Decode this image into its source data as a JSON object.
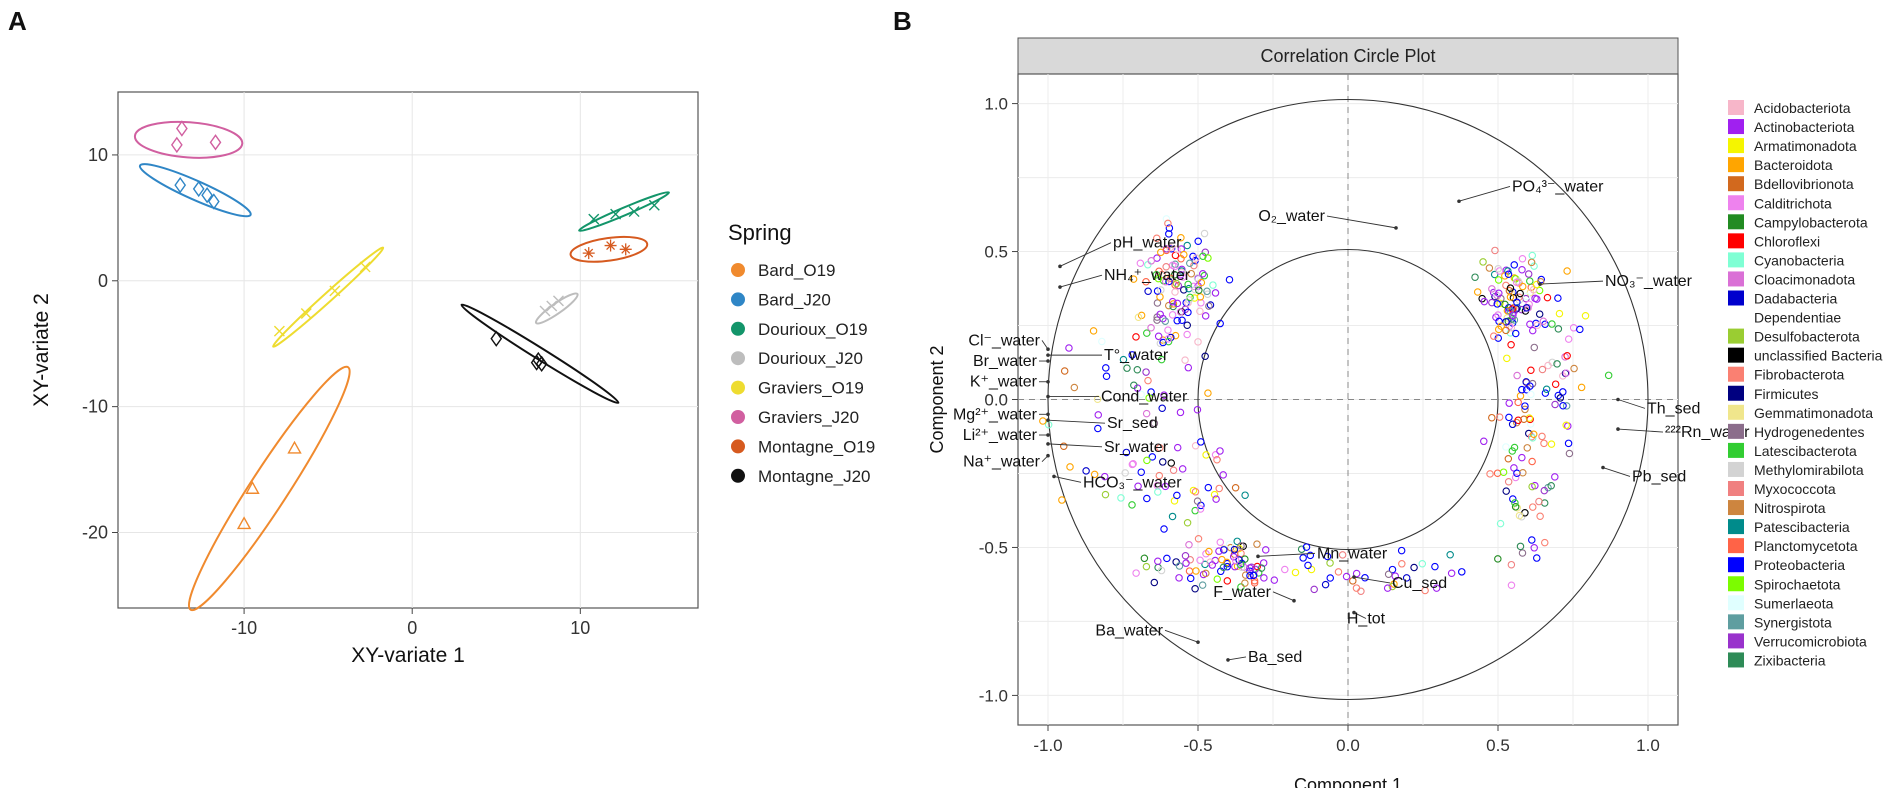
{
  "figure_labels": {
    "a": "A",
    "b": "B"
  },
  "chart_data": [
    {
      "type": "scatter",
      "panel": "A",
      "xlabel": "XY-variate 1",
      "ylabel": "XY-variate 2",
      "xlim": [
        -17.5,
        17
      ],
      "ylim": [
        -26,
        15
      ],
      "xticks": [
        -10,
        0,
        10
      ],
      "yticks": [
        -20,
        -10,
        0,
        10
      ],
      "grid": true,
      "legend_title": "Spring",
      "legend_position": "right",
      "series": [
        {
          "name": "Bard_O19",
          "color": "#F08A2E",
          "marker": "triangle",
          "points": [
            [
              -7.0,
              -13.3
            ],
            [
              -9.5,
              -16.5
            ],
            [
              -10.0,
              -19.3
            ]
          ],
          "ellipse": {
            "cx": -8.5,
            "cy": -16.5,
            "rx": 8.6,
            "ry": 1.5,
            "angle": 57
          }
        },
        {
          "name": "Bard_J20",
          "color": "#2F86C6",
          "marker": "diamond",
          "points": [
            [
              -13.8,
              7.6
            ],
            [
              -12.7,
              7.3
            ],
            [
              -11.8,
              6.3
            ],
            [
              -12.2,
              6.8
            ]
          ],
          "ellipse": {
            "cx": -12.9,
            "cy": 7.2,
            "rx": 3.6,
            "ry": 0.75,
            "angle": -24
          }
        },
        {
          "name": "Dourioux_O19",
          "color": "#13956A",
          "marker": "cross",
          "points": [
            [
              10.8,
              4.9
            ],
            [
              12.1,
              5.3
            ],
            [
              13.2,
              5.5
            ],
            [
              14.4,
              6.0
            ]
          ],
          "ellipse": {
            "cx": 12.6,
            "cy": 5.5,
            "rx": 2.9,
            "ry": 0.3,
            "angle": 23
          }
        },
        {
          "name": "Dourioux_J20",
          "color": "#BDBDBD",
          "marker": "cross",
          "points": [
            [
              7.9,
              -2.4
            ],
            [
              8.3,
              -2.0
            ],
            [
              8.7,
              -1.6
            ]
          ],
          "ellipse": {
            "cx": 8.6,
            "cy": -2.2,
            "rx": 1.5,
            "ry": 0.4,
            "angle": 35
          }
        },
        {
          "name": "Graviers_O19",
          "color": "#EEDC30",
          "marker": "cross",
          "points": [
            [
              -7.9,
              -4.0
            ],
            [
              -6.3,
              -2.6
            ],
            [
              -4.6,
              -0.8
            ],
            [
              -2.8,
              1.1
            ]
          ],
          "ellipse": {
            "cx": -5.0,
            "cy": -1.3,
            "rx": 4.4,
            "ry": 0.35,
            "angle": 42
          }
        },
        {
          "name": "Graviers_J20",
          "color": "#D15FA0",
          "marker": "diamond",
          "points": [
            [
              -13.7,
              12.1
            ],
            [
              -14.0,
              10.8
            ],
            [
              -11.7,
              11.0
            ]
          ],
          "ellipse": {
            "cx": -13.3,
            "cy": 11.2,
            "rx": 3.2,
            "ry": 1.4,
            "angle": -4
          }
        },
        {
          "name": "Montagne_O19",
          "color": "#D65A1F",
          "marker": "star",
          "points": [
            [
              10.5,
              2.2
            ],
            [
              11.8,
              2.8
            ],
            [
              12.7,
              2.5
            ]
          ],
          "ellipse": {
            "cx": 11.7,
            "cy": 2.5,
            "rx": 2.3,
            "ry": 0.9,
            "angle": 8
          }
        },
        {
          "name": "Montagne_J20",
          "color": "#111111",
          "marker": "diamond",
          "points": [
            [
              5.0,
              -4.6
            ],
            [
              7.4,
              -6.5
            ],
            [
              7.7,
              -6.6
            ],
            [
              7.5,
              -6.3
            ]
          ],
          "ellipse": {
            "cx": 7.6,
            "cy": -5.8,
            "rx": 5.5,
            "ry": 0.45,
            "angle": -32
          }
        }
      ]
    },
    {
      "type": "scatter",
      "panel": "B",
      "title": "Correlation Circle Plot",
      "xlabel": "Component 1",
      "ylabel": "Component 2",
      "xlim": [
        -1.1,
        1.1
      ],
      "ylim": [
        -1.1,
        1.1
      ],
      "xticks": [
        -1.0,
        -0.5,
        0.0,
        0.5,
        1.0
      ],
      "yticks": [
        -1.0,
        -0.5,
        0.0,
        0.5,
        1.0
      ],
      "xtick_labels": [
        "-1.0",
        "-0.5",
        "0.0",
        "0.5",
        "1.0"
      ],
      "ytick_labels": [
        "-1.0",
        "-0.5",
        "0.0",
        "0.5",
        "1.0"
      ],
      "circles": [
        0.5,
        1.0
      ],
      "grid": true,
      "legend_position": "right",
      "variables": [
        {
          "label": "PO₄³⁻_water",
          "x": 0.37,
          "y": 0.67,
          "lx": 0.54,
          "ly": 0.72
        },
        {
          "label": "O₂_water",
          "x": 0.16,
          "y": 0.58,
          "lx": -0.07,
          "ly": 0.62
        },
        {
          "label": "pH_water",
          "x": -0.96,
          "y": 0.45,
          "lx": -0.79,
          "ly": 0.53
        },
        {
          "label": "NH₄⁺_water",
          "x": -0.96,
          "y": 0.38,
          "lx": -0.82,
          "ly": 0.42
        },
        {
          "label": "NO₃⁻_water",
          "x": 0.64,
          "y": 0.39,
          "lx": 0.85,
          "ly": 0.4
        },
        {
          "label": "Cl⁻_water",
          "x": -1.0,
          "y": 0.17,
          "lx": -1.02,
          "ly": 0.2
        },
        {
          "label": "T°_water",
          "x": -1.0,
          "y": 0.15,
          "lx": -0.82,
          "ly": 0.15
        },
        {
          "label": "Br_water",
          "x": -1.0,
          "y": 0.13,
          "lx": -1.03,
          "ly": 0.13
        },
        {
          "label": "K⁺_water",
          "x": -1.0,
          "y": 0.06,
          "lx": -1.03,
          "ly": 0.06
        },
        {
          "label": "Cond_water",
          "x": -1.0,
          "y": 0.01,
          "lx": -0.83,
          "ly": 0.01
        },
        {
          "label": "Mg²⁺_water",
          "x": -1.0,
          "y": -0.05,
          "lx": -1.03,
          "ly": -0.05
        },
        {
          "label": "Sr_sed",
          "x": -1.0,
          "y": -0.07,
          "lx": -0.81,
          "ly": -0.08
        },
        {
          "label": "Li²⁺_water",
          "x": -1.0,
          "y": -0.12,
          "lx": -1.03,
          "ly": -0.12
        },
        {
          "label": "Sr_water",
          "x": -1.0,
          "y": -0.15,
          "lx": -0.82,
          "ly": -0.16
        },
        {
          "label": "Na⁺_water",
          "x": -1.0,
          "y": -0.19,
          "lx": -1.02,
          "ly": -0.21
        },
        {
          "label": "HCO₃⁻_water",
          "x": -0.98,
          "y": -0.26,
          "lx": -0.89,
          "ly": -0.28
        },
        {
          "label": "Th_sed",
          "x": 0.9,
          "y": 0.0,
          "lx": 0.99,
          "ly": -0.03
        },
        {
          "label": "²²²Rn_water",
          "x": 0.9,
          "y": -0.1,
          "lx": 1.05,
          "ly": -0.11
        },
        {
          "label": "Pb_sed",
          "x": 0.85,
          "y": -0.23,
          "lx": 0.94,
          "ly": -0.26
        },
        {
          "label": "Mn_water",
          "x": -0.3,
          "y": -0.53,
          "lx": -0.11,
          "ly": -0.52
        },
        {
          "label": "Cu_sed",
          "x": 0.02,
          "y": -0.6,
          "lx": 0.14,
          "ly": -0.62
        },
        {
          "label": "F_water",
          "x": -0.18,
          "y": -0.68,
          "lx": -0.25,
          "ly": -0.65
        },
        {
          "label": "H_tot",
          "x": 0.02,
          "y": -0.72,
          "lx": 0.06,
          "ly": -0.74
        },
        {
          "label": "Ba_water",
          "x": -0.5,
          "y": -0.82,
          "lx": -0.61,
          "ly": -0.78
        },
        {
          "label": "Ba_sed",
          "x": -0.4,
          "y": -0.88,
          "lx": -0.34,
          "ly": -0.87
        }
      ],
      "otu_clusters": [
        {
          "cx": -0.57,
          "cy": 0.38,
          "sx": 0.06,
          "sy": 0.09,
          "n": 120
        },
        {
          "cx": -0.75,
          "cy": 0.0,
          "sx": 0.13,
          "sy": 0.24,
          "n": 60
        },
        {
          "cx": -0.5,
          "cy": -0.3,
          "sx": 0.1,
          "sy": 0.1,
          "n": 50
        },
        {
          "cx": -0.4,
          "cy": -0.56,
          "sx": 0.12,
          "sy": 0.04,
          "n": 80
        },
        {
          "cx": 0.55,
          "cy": 0.35,
          "sx": 0.05,
          "sy": 0.06,
          "n": 100
        },
        {
          "cx": 0.67,
          "cy": 0.1,
          "sx": 0.09,
          "sy": 0.12,
          "n": 55
        },
        {
          "cx": 0.58,
          "cy": -0.23,
          "sx": 0.06,
          "sy": 0.15,
          "n": 60
        },
        {
          "cx": 0.1,
          "cy": -0.58,
          "sx": 0.17,
          "sy": 0.05,
          "n": 35
        }
      ],
      "legend": [
        {
          "name": "Acidobacteriota",
          "color": "#F7B6C9"
        },
        {
          "name": "Actinobacteriota",
          "color": "#A020F0"
        },
        {
          "name": "Armatimonadota",
          "color": "#F5F500"
        },
        {
          "name": "Bacteroidota",
          "color": "#FFA500"
        },
        {
          "name": "Bdellovibrionota",
          "color": "#D2691E"
        },
        {
          "name": "Calditrichota",
          "color": "#EE82EE"
        },
        {
          "name": "Campylobacterota",
          "color": "#228B22"
        },
        {
          "name": "Chloroflexi",
          "color": "#FF0000"
        },
        {
          "name": "Cyanobacteria",
          "color": "#7FFFD4"
        },
        {
          "name": "Cloacimonadota",
          "color": "#DA70D6"
        },
        {
          "name": "Dadabacteria",
          "color": "#0000CD"
        },
        {
          "name": "Dependentiae",
          "color": "#FFFFFF"
        },
        {
          "name": "Desulfobacterota",
          "color": "#9ACD32"
        },
        {
          "name": "unclassified Bacteria",
          "color": "#000000"
        },
        {
          "name": "Fibrobacterota",
          "color": "#FA8072"
        },
        {
          "name": "Firmicutes",
          "color": "#000080"
        },
        {
          "name": "Gemmatimonadota",
          "color": "#F0E68C"
        },
        {
          "name": "Hydrogenedentes",
          "color": "#8B6D8B"
        },
        {
          "name": "Latescibacterota",
          "color": "#32CD32"
        },
        {
          "name": "Methylomirabilota",
          "color": "#D3D3D3"
        },
        {
          "name": "Myxococcota",
          "color": "#F08080"
        },
        {
          "name": "Nitrospirota",
          "color": "#CD853F"
        },
        {
          "name": "Patescibacteria",
          "color": "#008B8B"
        },
        {
          "name": "Planctomycetota",
          "color": "#FF6347"
        },
        {
          "name": "Proteobacteria",
          "color": "#0000FF"
        },
        {
          "name": "Spirochaetota",
          "color": "#7CFC00"
        },
        {
          "name": "Sumerlaeota",
          "color": "#E0FFFF"
        },
        {
          "name": "Synergistota",
          "color": "#5F9EA0"
        },
        {
          "name": "Verrucomicrobiota",
          "color": "#9932CC"
        },
        {
          "name": "Zixibacteria",
          "color": "#2E8B57"
        }
      ]
    }
  ]
}
